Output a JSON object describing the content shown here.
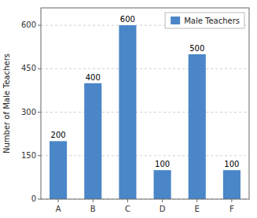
{
  "chart_data": {
    "type": "bar",
    "categories": [
      "A",
      "B",
      "C",
      "D",
      "E",
      "F"
    ],
    "series": [
      {
        "name": "Male Teachers",
        "color": "#4a86c8",
        "values": [
          200,
          400,
          600,
          100,
          500,
          100
        ]
      }
    ],
    "ylabel": "Number of Male Teachers",
    "ylim": [
      0,
      660
    ],
    "yticks": [
      0,
      150,
      300,
      450,
      600
    ],
    "grid": true,
    "legend": "upper right",
    "data_labels": true
  }
}
